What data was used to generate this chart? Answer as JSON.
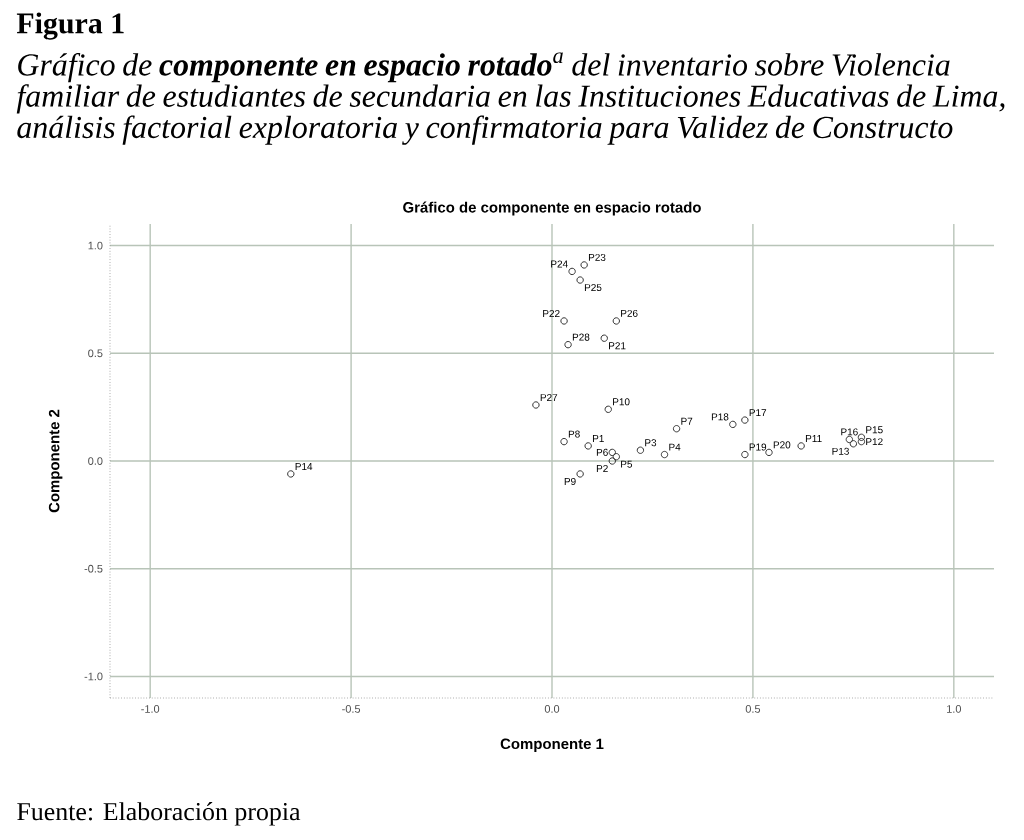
{
  "chart_data": {
    "type": "scatter",
    "title": "Gráfico de componente en espacio rotado",
    "annotations": [
      "Figura 1",
      "Gráfico de **componente en espacio rotado**$^{a}$ del inventario sobre Violencia familiar de estudiantes de secundaria en las Instituciones Educativas de Lima, análisis factorial exploratoria y confirmatoria para Validez de Constructo",
      "Fuente: Elaboración propia"
    ],
    "xlabel": "Componente 1",
    "ylabel": "Componente 2",
    "xlim": [
      -1.1,
      1.1
    ],
    "ylim": [
      -1.1,
      1.1
    ],
    "xticks": [
      {
        "value": -1,
        "label": "-1.0"
      },
      {
        "value": -0.5,
        "label": "-0.5"
      },
      {
        "value": 0,
        "label": "0.0"
      },
      {
        "value": 0.5,
        "label": "0.5"
      },
      {
        "value": 1,
        "label": "1.0"
      }
    ],
    "yticks": [
      {
        "value": -1,
        "label": "-1.0"
      },
      {
        "value": -0.5,
        "label": "-0.5"
      },
      {
        "value": 0,
        "label": "0.0"
      },
      {
        "value": 0.5,
        "label": "0.5"
      },
      {
        "value": 1,
        "label": "1.0"
      }
    ],
    "grid": true,
    "marker": "circle",
    "series": [
      {
        "name": "P1",
        "color": "#333333",
        "x": [
          0.09
        ],
        "values": [
          0.07
        ]
      },
      {
        "name": "P2",
        "color": "#333333",
        "x": [
          0.15
        ],
        "values": [
          0.0
        ]
      },
      {
        "name": "P3",
        "color": "#333333",
        "x": [
          0.22
        ],
        "values": [
          0.05
        ]
      },
      {
        "name": "P4",
        "color": "#333333",
        "x": [
          0.28
        ],
        "values": [
          0.03
        ]
      },
      {
        "name": "P5",
        "color": "#333333",
        "x": [
          0.16
        ],
        "values": [
          0.02
        ]
      },
      {
        "name": "P6",
        "color": "#333333",
        "x": [
          0.15
        ],
        "values": [
          0.04
        ]
      },
      {
        "name": "P7",
        "color": "#333333",
        "x": [
          0.31
        ],
        "values": [
          0.15
        ]
      },
      {
        "name": "P8",
        "color": "#333333",
        "x": [
          0.03
        ],
        "values": [
          0.09
        ]
      },
      {
        "name": "P9",
        "color": "#333333",
        "x": [
          0.07
        ],
        "values": [
          -0.06
        ]
      },
      {
        "name": "P10",
        "color": "#333333",
        "x": [
          0.14
        ],
        "values": [
          0.24
        ]
      },
      {
        "name": "P11",
        "color": "#333333",
        "x": [
          0.62
        ],
        "values": [
          0.07
        ]
      },
      {
        "name": "P12",
        "color": "#333333",
        "x": [
          0.77
        ],
        "values": [
          0.09
        ]
      },
      {
        "name": "P13",
        "color": "#333333",
        "x": [
          0.75
        ],
        "values": [
          0.08
        ]
      },
      {
        "name": "P14",
        "color": "#333333",
        "x": [
          -0.65
        ],
        "values": [
          -0.06
        ]
      },
      {
        "name": "P15",
        "color": "#333333",
        "x": [
          0.77
        ],
        "values": [
          0.11
        ]
      },
      {
        "name": "P16",
        "color": "#333333",
        "x": [
          0.74
        ],
        "values": [
          0.1
        ]
      },
      {
        "name": "P17",
        "color": "#333333",
        "x": [
          0.48
        ],
        "values": [
          0.19
        ]
      },
      {
        "name": "P18",
        "color": "#333333",
        "x": [
          0.45
        ],
        "values": [
          0.17
        ]
      },
      {
        "name": "P19",
        "color": "#333333",
        "x": [
          0.48
        ],
        "values": [
          0.03
        ]
      },
      {
        "name": "P20",
        "color": "#333333",
        "x": [
          0.54
        ],
        "values": [
          0.04
        ]
      },
      {
        "name": "P21",
        "color": "#333333",
        "x": [
          0.13
        ],
        "values": [
          0.57
        ]
      },
      {
        "name": "P22",
        "color": "#333333",
        "x": [
          0.03
        ],
        "values": [
          0.65
        ]
      },
      {
        "name": "P23",
        "color": "#333333",
        "x": [
          0.08
        ],
        "values": [
          0.91
        ]
      },
      {
        "name": "P24",
        "color": "#333333",
        "x": [
          0.05
        ],
        "values": [
          0.88
        ]
      },
      {
        "name": "P25",
        "color": "#333333",
        "x": [
          0.07
        ],
        "values": [
          0.84
        ]
      },
      {
        "name": "P26",
        "color": "#333333",
        "x": [
          0.16
        ],
        "values": [
          0.65
        ]
      },
      {
        "name": "P27",
        "color": "#333333",
        "x": [
          -0.04
        ],
        "values": [
          0.26
        ]
      },
      {
        "name": "P28",
        "color": "#333333",
        "x": [
          0.04
        ],
        "values": [
          0.54
        ]
      }
    ]
  }
}
